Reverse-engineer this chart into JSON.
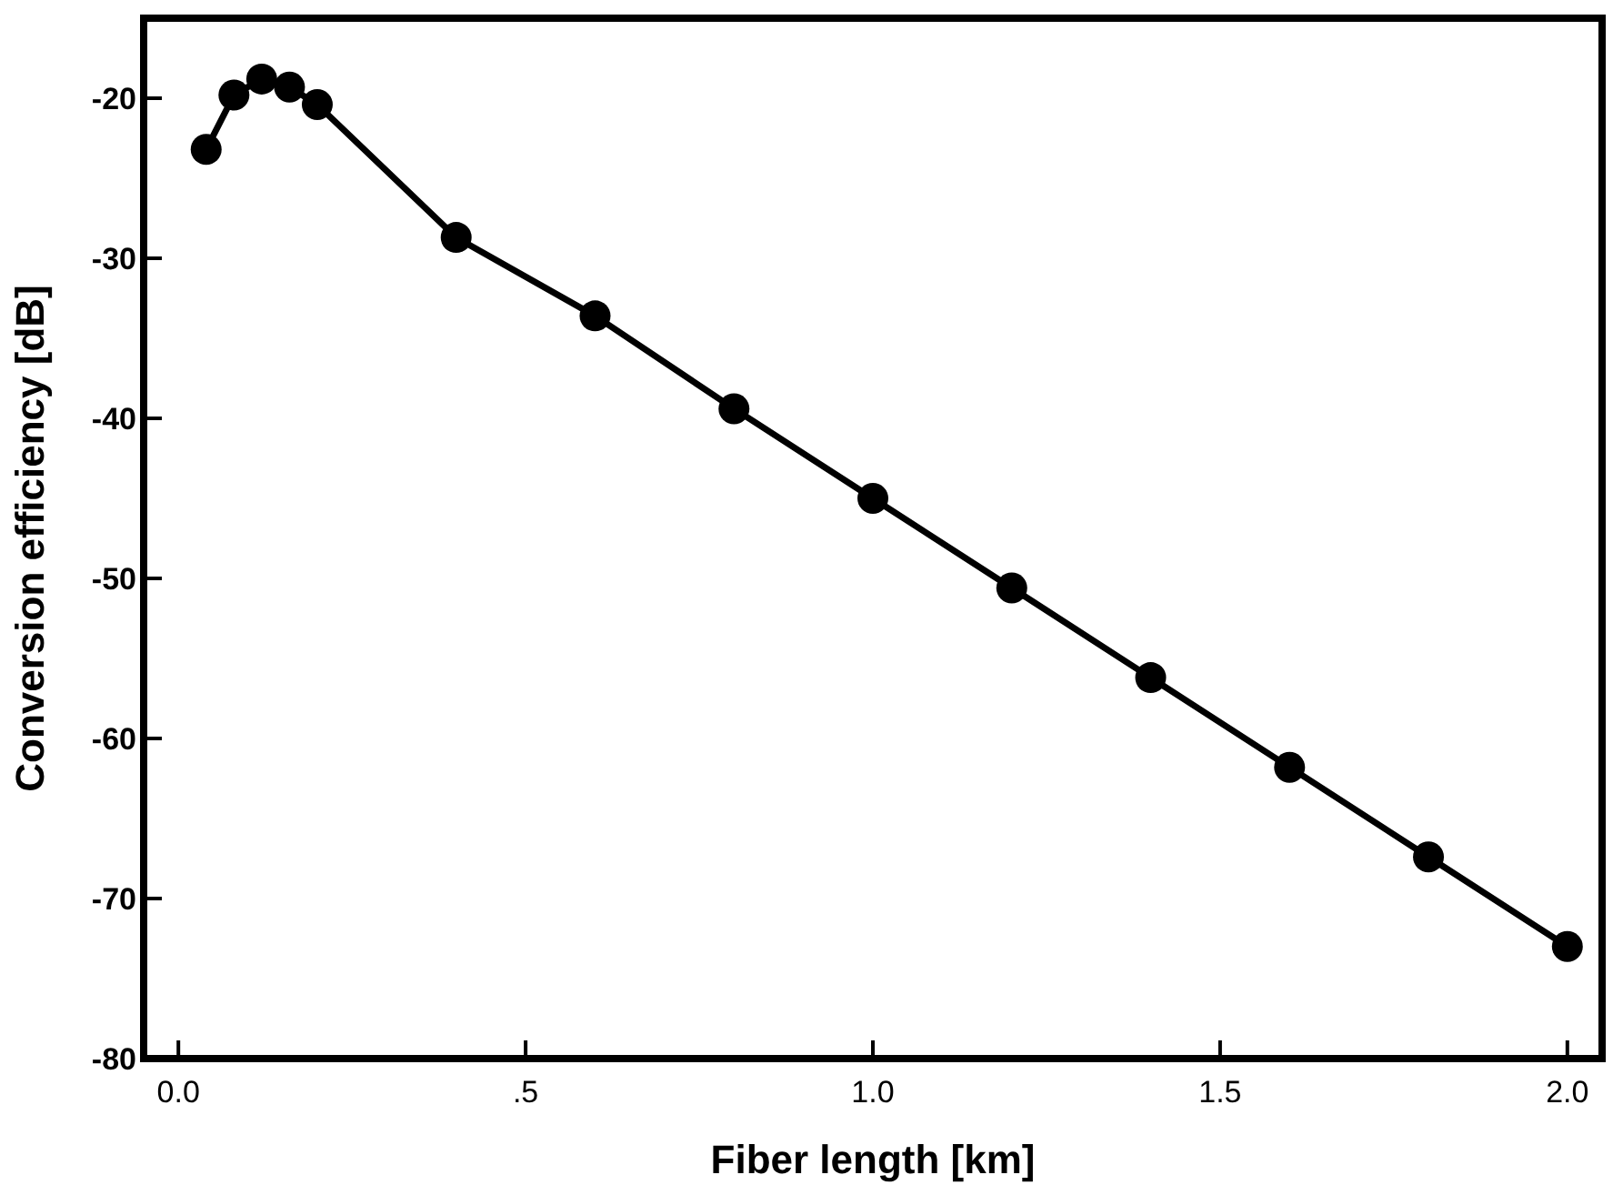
{
  "chart_data": {
    "type": "line",
    "xlabel": "Fiber length [km]",
    "ylabel": "Conversion efficiency [dB]",
    "x": [
      0.04,
      0.08,
      0.12,
      0.16,
      0.2,
      0.4,
      0.6,
      0.8,
      1.0,
      1.2,
      1.4,
      1.6,
      1.8,
      2.0
    ],
    "series": [
      {
        "color": "#000000",
        "values": [
          -23.2,
          -19.8,
          -18.8,
          -19.3,
          -20.4,
          -28.7,
          -33.6,
          -39.4,
          -45.0,
          -50.6,
          -56.2,
          -61.8,
          -67.4,
          -73.0
        ]
      }
    ],
    "xlim": [
      -0.05,
      2.05
    ],
    "xticks": [
      {
        "value": 0,
        "label": "0.0"
      },
      {
        "value": 0.5,
        "label": ".5"
      },
      {
        "value": 1,
        "label": "1.0"
      },
      {
        "value": 1.5,
        "label": "1.5"
      },
      {
        "value": 2,
        "label": "2.0"
      }
    ],
    "ylim": [
      -80,
      -15
    ],
    "yticks": [
      -80,
      -70,
      -60,
      -50,
      -40,
      -30,
      -20
    ],
    "grid": false,
    "legend": false,
    "marker": "circle",
    "line_style": "solid"
  }
}
